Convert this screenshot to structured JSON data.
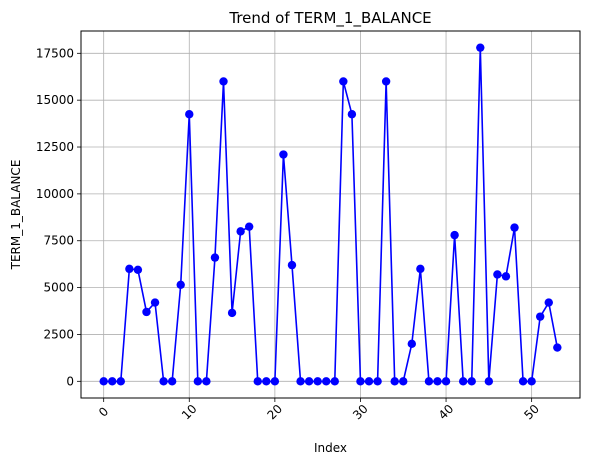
{
  "chart_data": {
    "type": "line",
    "title": "Trend of TERM_1_BALANCE",
    "xlabel": "Index",
    "ylabel": "TERM_1_BALANCE",
    "xlim": [
      -2.65,
      55.65
    ],
    "ylim": [
      -890,
      18690
    ],
    "xticks": [
      0,
      10,
      20,
      30,
      40,
      50
    ],
    "yticks": [
      0,
      2500,
      5000,
      7500,
      10000,
      12500,
      15000,
      17500
    ],
    "xtick_labels": [
      "0",
      "10",
      "20",
      "30",
      "40",
      "50"
    ],
    "ytick_labels": [
      "0",
      "2500",
      "5000",
      "7500",
      "10000",
      "12500",
      "15000",
      "17500"
    ],
    "xtick_rotation": 45,
    "grid": true,
    "legend": false,
    "series": [
      {
        "color": "#0000ff",
        "marker": "circle",
        "x": [
          0,
          1,
          2,
          3,
          4,
          5,
          6,
          7,
          8,
          9,
          10,
          11,
          12,
          13,
          14,
          15,
          16,
          17,
          18,
          19,
          20,
          21,
          22,
          23,
          24,
          25,
          26,
          27,
          28,
          29,
          30,
          31,
          32,
          33,
          34,
          35,
          36,
          37,
          38,
          39,
          40,
          41,
          42,
          43,
          44,
          45,
          46,
          47,
          48,
          49,
          50,
          51,
          52,
          53
        ],
        "values": [
          0,
          0,
          0,
          6000,
          5950,
          3700,
          4200,
          0,
          0,
          5150,
          14250,
          0,
          0,
          6600,
          16000,
          3650,
          8000,
          8250,
          0,
          0,
          0,
          12100,
          6200,
          0,
          0,
          0,
          0,
          0,
          16000,
          14250,
          0,
          0,
          0,
          16000,
          0,
          0,
          2000,
          6000,
          0,
          0,
          0,
          7800,
          0,
          0,
          17800,
          0,
          5700,
          5600,
          8200,
          0,
          0,
          3450,
          4200,
          1800
        ]
      }
    ]
  }
}
